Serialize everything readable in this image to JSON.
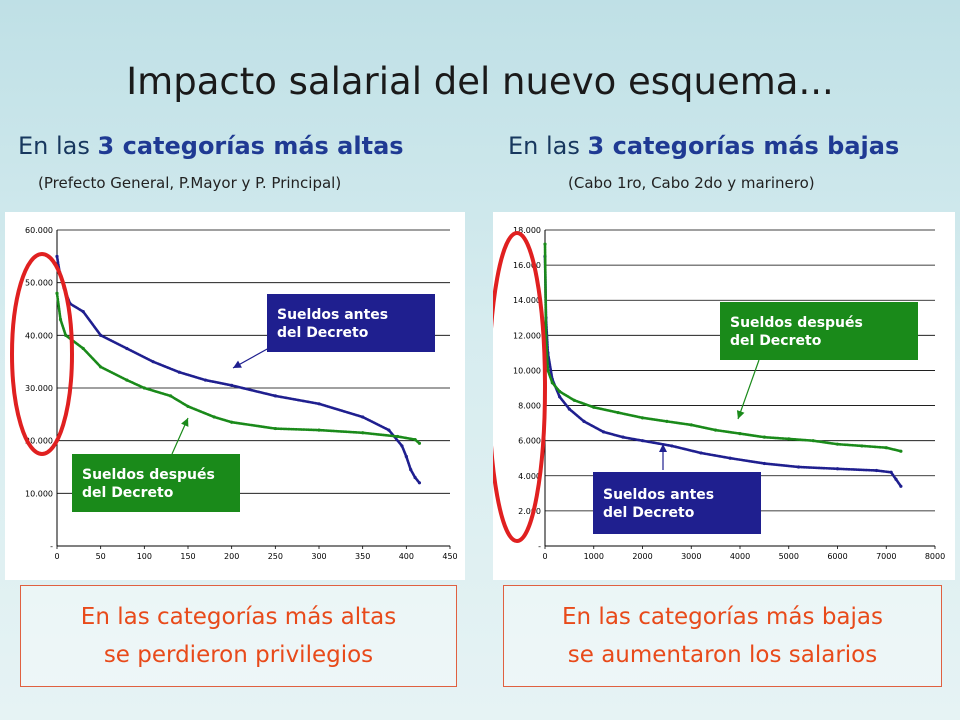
{
  "slide": {
    "title": "Impacto salarial del nuevo esquema...",
    "left": {
      "heading_pre": "En las",
      "heading_bold": "3 categorías más altas",
      "note": "(Prefecto General, P.Mayor y P. Principal)",
      "conclusion_line1": "En las categorías más altas",
      "conclusion_line2": "se perdieron privilegios"
    },
    "right": {
      "heading_pre": "En las",
      "heading_bold": "3 categorías más bajas",
      "note": "(Cabo 1ro, Cabo 2do y marinero)",
      "conclusion_line1": "En las categorías más bajas",
      "conclusion_line2": "se aumentaron los salarios"
    }
  },
  "colors": {
    "before": "#1f1f8f",
    "after": "#1a8a1a",
    "highlight": "#e02020",
    "conclusion": "#e84a1a"
  },
  "chart_data": [
    {
      "type": "scatter",
      "xlim": [
        0,
        450
      ],
      "ylim": [
        0,
        60000
      ],
      "xticks": [
        "0",
        "50",
        "100",
        "150",
        "200",
        "250",
        "300",
        "350",
        "400",
        "450"
      ],
      "yticks": [
        "-",
        "10.000",
        "20.000",
        "30.000",
        "40.000",
        "50.000",
        "60.000"
      ],
      "grid": true,
      "series": [
        {
          "name": "Sueldos antes del Decreto",
          "color": "#1f1f8f",
          "points": [
            [
              0,
              55000
            ],
            [
              3,
              52000
            ],
            [
              8,
              49000
            ],
            [
              15,
              46000
            ],
            [
              30,
              44500
            ],
            [
              50,
              40000
            ],
            [
              80,
              37500
            ],
            [
              110,
              35000
            ],
            [
              140,
              33000
            ],
            [
              170,
              31500
            ],
            [
              200,
              30500
            ],
            [
              250,
              28500
            ],
            [
              300,
              27000
            ],
            [
              350,
              24500
            ],
            [
              380,
              22000
            ],
            [
              395,
              19000
            ],
            [
              400,
              17000
            ],
            [
              405,
              14500
            ],
            [
              410,
              13000
            ],
            [
              415,
              12000
            ]
          ]
        },
        {
          "name": "Sueldos después del Decreto",
          "color": "#1a8a1a",
          "points": [
            [
              0,
              48000
            ],
            [
              4,
              43000
            ],
            [
              10,
              40000
            ],
            [
              30,
              37500
            ],
            [
              50,
              34000
            ],
            [
              80,
              31500
            ],
            [
              100,
              30000
            ],
            [
              130,
              28500
            ],
            [
              150,
              26500
            ],
            [
              180,
              24500
            ],
            [
              200,
              23500
            ],
            [
              250,
              22300
            ],
            [
              300,
              22000
            ],
            [
              350,
              21500
            ],
            [
              390,
              20800
            ],
            [
              410,
              20200
            ],
            [
              415,
              19500
            ]
          ]
        }
      ],
      "annotations": [
        {
          "text1": "Sueldos antes",
          "text2": "del Decreto"
        },
        {
          "text1": "Sueldos después",
          "text2": "del Decreto"
        }
      ]
    },
    {
      "type": "scatter",
      "xlim": [
        0,
        8000
      ],
      "ylim": [
        0,
        18000
      ],
      "xticks": [
        "0",
        "1000",
        "2000",
        "3000",
        "4000",
        "5000",
        "6000",
        "7000",
        "8000"
      ],
      "yticks": [
        "-",
        "2.000",
        "4.000",
        "6.000",
        "8.000",
        "10.000",
        "12.000",
        "14.000",
        "16.000",
        "18.000"
      ],
      "grid": true,
      "series": [
        {
          "name": "Sueldos antes del Decreto",
          "color": "#1f1f8f",
          "points": [
            [
              0,
              16500
            ],
            [
              20,
              13000
            ],
            [
              60,
              11000
            ],
            [
              150,
              9500
            ],
            [
              300,
              8500
            ],
            [
              500,
              7800
            ],
            [
              800,
              7100
            ],
            [
              1200,
              6500
            ],
            [
              1600,
              6200
            ],
            [
              2000,
              6000
            ],
            [
              2600,
              5700
            ],
            [
              3200,
              5300
            ],
            [
              3800,
              5000
            ],
            [
              4500,
              4700
            ],
            [
              5200,
              4500
            ],
            [
              6000,
              4400
            ],
            [
              6800,
              4300
            ],
            [
              7100,
              4200
            ],
            [
              7200,
              3800
            ],
            [
              7300,
              3400
            ]
          ]
        },
        {
          "name": "Sueldos después del Decreto",
          "color": "#1a8a1a",
          "points": [
            [
              0,
              17200
            ],
            [
              20,
              12000
            ],
            [
              60,
              10000
            ],
            [
              150,
              9300
            ],
            [
              300,
              8800
            ],
            [
              600,
              8300
            ],
            [
              1000,
              7900
            ],
            [
              1500,
              7600
            ],
            [
              2000,
              7300
            ],
            [
              2500,
              7100
            ],
            [
              3000,
              6900
            ],
            [
              3500,
              6600
            ],
            [
              4000,
              6400
            ],
            [
              4500,
              6200
            ],
            [
              5000,
              6100
            ],
            [
              5500,
              6000
            ],
            [
              6000,
              5800
            ],
            [
              6500,
              5700
            ],
            [
              7000,
              5600
            ],
            [
              7300,
              5400
            ]
          ]
        }
      ],
      "annotations": [
        {
          "text1": "Sueldos después",
          "text2": "del Decreto"
        },
        {
          "text1": "Sueldos antes",
          "text2": "del Decreto"
        }
      ]
    }
  ]
}
